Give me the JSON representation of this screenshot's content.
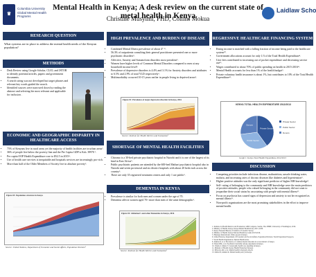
{
  "header": {
    "title": "Mental Health in Kenya; A desk review on the current state of metal health in Kenya",
    "authors": "Christine Musyimi, PHD, Collins Mokua",
    "left_logo": "Columbia University Global Mental Health Programs",
    "right_logo": "Laidlaw Scholars"
  },
  "research_question": {
    "heading": "RESEARCH QUESTION",
    "text": "What systems are in place to address the mental health needs of the Kenyan population?"
  },
  "methods": {
    "heading": "METHODS",
    "items": [
      "Desk Review using Google Scholar, CLIO, and JSTOR to identify potential articles, papers and government documents.",
      "A search string was not developed but target phrases and relevant key words guided the search.",
      "Identified sources were narrowed down by reading the abstract and selecting the most relevant and applicable for inclusion ."
    ]
  },
  "disparity": {
    "heading": "ECONOMIC AND GEOGRAPHIC DISPARITY IN HEALTHCARE ACCESS",
    "items": [
      "75% of Kenyans live in rural areas yet the majority of health facilities are in urban areas².",
      "36% of people live below the poverty line and the Per Capita GDP is Ksh. 39970 ³.",
      "Per capita OOP Health Expenditure rose to $52.5 in 2015⁴.",
      "Use of health care services is inequitable and hospitals services are increasingly pro-rich.",
      "More than half of the Older Members of Society live in absolute poverty⁵."
    ],
    "figure_title": "Figure 03: Population structure in Kenya",
    "source": "Source: United Nations, Department of Economic and Social Affairs, Population Division⁶"
  },
  "prevalence": {
    "heading": "HIGH PREVALENCE AND BURDEN OF DISEASE",
    "items": [
      "Combined Mental Illness prevalence of about 4⁷⁻⁸.",
      "56.3% of outpatients consulting their general practitioner presented one or more psychiatric disorders⁹.",
      "Affective, Anxiety and Somatoform disorders most prevalent⁹.",
      "Women have higher levels of Common Mental Disorders compared to men at any household income level⁸.",
      "Prevalence of depressive disorders is 4.4% and 3.1% for Anxiety disorders and attributes to 6.5% and 2.9% of total YLD respectively¹.",
      "Multimorbidity occurred 10-15 years earlier in people living in deprived areas⁸."
    ],
    "figure_title": "Figure 01: Prevalence of major depressive disorder in Kenya, 2016",
    "source": "Source: Institute for Health Metrics and Evaluation¹"
  },
  "shortage": {
    "heading": "SHORTAGE OF MENTAL HEALTH FACILITIES",
    "items": [
      "Chiromo is a 30-bed private psychiatric hospital in Nairobi and it is one of the largest of its kind in East Africa⁹.",
      "Public psychiatric patients are attended by the 600-bed Mathari psychiatric hospital also in Nairobi and seven provincial and six district hospitals with about 20 beds each across the country⁹.",
      "There are only 35 registered treatment centers and only 1 are public⁹."
    ]
  },
  "dementia": {
    "heading": "DEMENTIA IN KENYA",
    "items": [
      "Prevalence is similar for both men and women under the age of 70.",
      "Dementia affects women aged 70+ more than men of the same demographic¹."
    ],
    "figure_title": "Figure 02: Alzheimer's and other Dementias in Kenya, 2016",
    "source": "Source: Institute for Health Metrics and Evaluation¹"
  },
  "financing": {
    "heading": "REGRESSIVE HEALTHCARE FINANCING SYSTEM",
    "items": [
      "Rising income is matched with a falling fraction of income being paid to the healthcare system¹⁰.",
      "Government allocations account for only 1/3 of the Total Health Expenditure⁴.",
      "User fees contributed to increasing out of pocket expenditure and decreasing service use¹¹.",
      "Wages contributed to about 70% of public spending on health in 2015-2016¹¹.",
      "Mental Health accounts for less than 1% of the health budget⁹.",
      "Private voluntary health insurance is about 1%, but contributes to 10% of the Total Health Expenditure¹¹."
    ],
    "chart_title": "KENYA TOTAL HEALTH EXPENDITURE 2012/2013",
    "chart_caption": "Graph 1: Kenya Total Health Expenditure 2012/2013"
  },
  "discussion": {
    "heading": "DISCUSSION",
    "items": [
      "Competing priorities include infectious disease, malnutrition, unsafe drinking water, malaria, and increasing rates of chronic diseases like diabetes and hypertension⁹.",
      "Higher positive attitudes was the only significant predictor of higher MH knowledge⁹.",
      "Self- rating of belonging to the community and MH knowledge were the main predictors of positive attitudes; people who valued belonging in the community did not want to jeopardize their social status by associating with people with mental illness¹².",
      "Focus on psychosis has caused signs of depression and anxiety to not be recognized as mental illness¹³.",
      "Non-profit organizations are the most promising stakeholders in the effort to improve mental health."
    ]
  },
  "chart_data": [
    {
      "type": "pie",
      "title": "KENYA TOTAL HEALTH EXPENDITURE 2012/2013",
      "categories": [
        "Private Sector",
        "Public Sector",
        "Donors"
      ],
      "values": [
        40,
        33,
        27
      ],
      "colors": [
        "#2f5597",
        "#8fb3e0",
        "#5b7fbd"
      ]
    }
  ],
  "references": [
    "1. Institute for Health Metrics and Evaluation. GBD Compare. Seattle, WA: IHME, University of Washington, 2016.",
    "2. Ministry of Health, Kenya. Kenya Mental Health Policy 2015–2030.",
    "3. Kenya National Bureau of Statistics. Economic Survey.",
    "4. Ministry of Health. Kenya National Health Accounts 2015/2016.",
    "5. HelpAge International. Older people in Kenya.",
    "6. United Nations, Department of Economic and Social Affairs, Population Division. World Population Prospects.",
    "7. World Health Organization. Mental Health Atlas.",
    "8. Jenkins R, et al. Prevalence of common mental disorders in a rural district of Kenya.",
    "9. Ndetei DM, et al. Psychiatric morbidity among outpatients in Kenya.",
    "10. Chuma J, Maina T. Catastrophic health care spending in Kenya.",
    "11. Ministry of Health. Kenya Health Financing Strategy.",
    "12. Mbwayo AW, et al. Mental health in Kenyan schools.",
    "13. Kiima D, Jenkins R. Mental health policy in Kenya."
  ]
}
